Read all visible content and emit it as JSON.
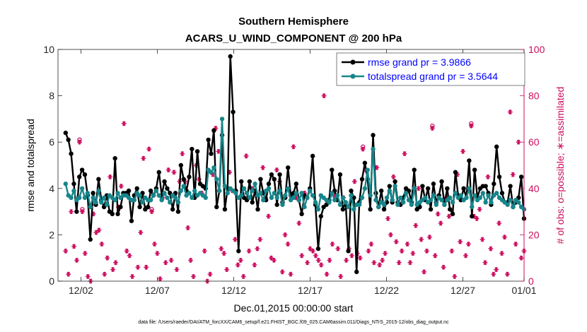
{
  "chart_data": {
    "type": "line",
    "title": "Southern Hemisphere",
    "subtitle": "ACARS_U_WIND_COMPONENT @ 200 hPa",
    "xlabel": "Dec.01,2015 00:00:00 start",
    "ylabel": "rmse and totalspread",
    "ylabel_right": "# of obs: o=possible; ∗=assimilated",
    "footnote": "data file: /Users/raeder/DAI/ATM_forcXX/CAM6_setup/f.e21.FHIST_BGC.f09_025.CAM6assim.011/Diags_NTrS_2015-12/obs_diag_output.nc",
    "xlim": [
      0.5,
      31.0
    ],
    "ylim": [
      0,
      10
    ],
    "ylim_right": [
      0,
      100
    ],
    "x_ticks": [
      {
        "value": 2,
        "label": "12/02"
      },
      {
        "value": 7,
        "label": "12/07"
      },
      {
        "value": 12,
        "label": "12/12"
      },
      {
        "value": 17,
        "label": "12/17"
      },
      {
        "value": 22,
        "label": "12/22"
      },
      {
        "value": 27,
        "label": "12/27"
      },
      {
        "value": 32,
        "label": "01/01"
      }
    ],
    "y_ticks": [
      "0",
      "2",
      "4",
      "6",
      "8",
      "10"
    ],
    "y_ticks_right": [
      "0",
      "20",
      "40",
      "60",
      "80",
      "100"
    ],
    "x_tick_labels": [
      "12/02",
      "12/07",
      "12/12",
      "12/17",
      "12/22",
      "12/27",
      "01/01"
    ],
    "legend_position": "top-right",
    "series": [
      {
        "name": "rmse grand pr = 3.9866",
        "color": "#000000",
        "marker": "dot",
        "axis": "left",
        "values": [
          6.4,
          6.1,
          5.5,
          4.2,
          3.0,
          4.5,
          4.8,
          4.6,
          3.7,
          1.8,
          3.8,
          3.3,
          4.4,
          3.5,
          3.2,
          3.7,
          3.0,
          2.9,
          5.3,
          2.9,
          3.2,
          3.8,
          3.8,
          3.9,
          2.6,
          3.7,
          4.0,
          3.2,
          3.8,
          3.1,
          3.2,
          3.9,
          3.7,
          4.0,
          4.7,
          3.7,
          4.3,
          4.0,
          3.8,
          3.1,
          3.8,
          3.0,
          5.0,
          4.4,
          3.9,
          4.5,
          5.7,
          3.6,
          5.6,
          4.2,
          4.1,
          4.0,
          6.1,
          5.5,
          6.5,
          3.2,
          3.9,
          6.3,
          3.1,
          4.0,
          9.7,
          7.3,
          3.9,
          1.3,
          4.3,
          3.6,
          3.5,
          4.3,
          3.4,
          3.9,
          3.1,
          4.4,
          3.8,
          3.5,
          4.2,
          4.6,
          4.4,
          3.3,
          4.6,
          3.4,
          3.6,
          4.9,
          3.7,
          3.8,
          4.2,
          3.5,
          2.9,
          3.7,
          3.6,
          4.0,
          5.4,
          3.3,
          1.4,
          2.8,
          3.2,
          3.3,
          3.5,
          4.8,
          3.9,
          3.5,
          4.6,
          3.1,
          3.4,
          1.3,
          3.9,
          3.6,
          0.4,
          3.4,
          4.4,
          5.1,
          4.4,
          3.1,
          6.3,
          3.8,
          3.2,
          3.9,
          3.1,
          3.4,
          4.1,
          3.4,
          4.3,
          3.4,
          3.3,
          3.6,
          4.0,
          3.9,
          3.4,
          4.8,
          3.1,
          3.2,
          4.1,
          3.5,
          4.0,
          3.1,
          4.2,
          3.4,
          3.7,
          4.3,
          3.3,
          4.0,
          3.1,
          2.9,
          4.7,
          3.7,
          3.5,
          4.0,
          3.6,
          5.2,
          2.8,
          4.8,
          3.6,
          4.0,
          4.1,
          4.1,
          3.8,
          3.3,
          4.2,
          5.8,
          4.5,
          3.8,
          3.4,
          3.4,
          4.1,
          3.2,
          3.4,
          3.6,
          4.5,
          2.7
        ]
      },
      {
        "name": "totalspread grand pr = 3.5644",
        "color": "#17858a",
        "marker": "dot",
        "axis": "left",
        "values": [
          4.2,
          3.7,
          3.6,
          3.9,
          3.5,
          3.6,
          4.0,
          3.6,
          3.8,
          3.2,
          3.6,
          3.4,
          3.9,
          3.4,
          3.6,
          3.3,
          3.7,
          3.6,
          3.5,
          3.8,
          3.6,
          3.7,
          3.7,
          3.6,
          3.5,
          3.5,
          3.8,
          3.7,
          3.4,
          3.6,
          3.5,
          3.5,
          3.7,
          3.9,
          3.7,
          3.5,
          3.8,
          3.6,
          3.4,
          3.7,
          3.6,
          3.4,
          3.9,
          4.1,
          3.7,
          3.8,
          3.6,
          3.9,
          3.7,
          3.8,
          3.7,
          3.6,
          4.8,
          4.7,
          4.9,
          4.4,
          3.9,
          7.0,
          4.1,
          3.8,
          4.0,
          3.9,
          3.8,
          3.6,
          3.7,
          4.0,
          3.8,
          3.6,
          3.9,
          4.2,
          3.7,
          3.8,
          3.5,
          3.9,
          4.0,
          3.6,
          3.8,
          3.6,
          3.9,
          3.3,
          3.7,
          4.0,
          3.5,
          3.6,
          3.8,
          3.5,
          3.8,
          3.2,
          3.6,
          3.9,
          3.7,
          3.4,
          3.1,
          3.7,
          3.6,
          3.5,
          3.4,
          3.8,
          3.5,
          3.7,
          3.3,
          3.6,
          3.4,
          3.2,
          3.7,
          3.1,
          3.3,
          3.3,
          3.6,
          4.0,
          4.8,
          3.7,
          5.7,
          3.5,
          3.2,
          3.4,
          3.3,
          3.6,
          3.9,
          3.5,
          4.1,
          3.3,
          3.6,
          3.4,
          3.8,
          3.5,
          3.3,
          4.0,
          3.3,
          3.4,
          3.5,
          3.6,
          3.4,
          3.5,
          3.7,
          3.3,
          3.6,
          3.5,
          3.3,
          3.5,
          3.6,
          3.4,
          3.8,
          3.6,
          3.7,
          3.5,
          3.6,
          4.0,
          3.2,
          3.7,
          3.5,
          3.6,
          3.8,
          3.4,
          3.7,
          3.4,
          3.7,
          3.8,
          3.6,
          3.5,
          3.4,
          3.3,
          3.5,
          3.2,
          3.5,
          3.4,
          3.2,
          3.1
        ]
      },
      {
        "name": "possible",
        "color": "#cc0d5e",
        "marker": "circle",
        "axis": "right",
        "values": [
          13,
          3,
          30,
          15,
          9,
          61,
          31,
          12,
          2,
          0,
          29,
          21,
          22,
          16,
          3,
          10,
          45,
          5,
          8,
          32,
          41,
          68,
          13,
          11,
          2,
          37,
          6,
          21,
          53,
          6,
          57,
          31,
          16,
          12,
          1,
          36,
          8,
          48,
          9,
          47,
          5,
          43,
          55,
          43,
          23,
          9,
          2,
          50,
          44,
          38,
          13,
          0,
          3,
          46,
          66,
          56,
          14,
          12,
          5,
          47,
          39,
          18,
          7,
          9,
          2,
          54,
          13,
          40,
          7,
          14,
          18,
          49,
          36,
          28,
          10,
          9,
          48,
          43,
          4,
          20,
          16,
          3,
          58,
          36,
          25,
          11,
          38,
          8,
          14,
          13,
          11,
          9,
          7,
          80,
          3,
          9,
          16,
          37,
          14,
          2,
          36,
          9,
          14,
          11,
          43,
          12,
          10,
          58,
          48,
          13,
          16,
          8,
          49,
          7,
          9,
          12,
          27,
          20,
          45,
          17,
          8,
          13,
          55,
          16,
          8,
          12,
          24,
          40,
          18,
          4,
          13,
          19,
          67,
          11,
          29,
          25,
          6,
          36,
          28,
          13,
          2,
          46,
          17,
          56,
          11,
          16,
          68,
          28,
          27,
          31,
          18,
          8,
          45,
          14,
          3,
          5,
          25,
          12,
          19,
          3,
          73,
          46,
          16,
          60,
          10,
          13
        ]
      },
      {
        "name": "assimilated",
        "color": "#cc0d5e",
        "marker": "star",
        "axis": "right",
        "values": [
          13,
          3,
          30,
          15,
          9,
          60,
          30,
          12,
          2,
          0,
          29,
          21,
          22,
          16,
          3,
          10,
          45,
          5,
          8,
          32,
          41,
          68,
          13,
          11,
          2,
          37,
          6,
          21,
          53,
          6,
          57,
          30,
          16,
          12,
          1,
          36,
          8,
          48,
          9,
          47,
          5,
          43,
          55,
          43,
          23,
          9,
          2,
          50,
          44,
          38,
          13,
          0,
          3,
          46,
          66,
          56,
          14,
          12,
          5,
          47,
          39,
          18,
          7,
          9,
          2,
          54,
          13,
          40,
          7,
          14,
          18,
          49,
          36,
          28,
          10,
          9,
          48,
          43,
          4,
          20,
          16,
          3,
          58,
          36,
          25,
          11,
          38,
          8,
          14,
          13,
          11,
          9,
          7,
          80,
          3,
          9,
          16,
          37,
          14,
          2,
          36,
          9,
          14,
          11,
          43,
          12,
          10,
          57,
          48,
          13,
          16,
          8,
          49,
          7,
          9,
          12,
          27,
          20,
          45,
          17,
          8,
          13,
          55,
          16,
          8,
          12,
          24,
          40,
          18,
          4,
          13,
          19,
          66,
          11,
          29,
          25,
          6,
          36,
          28,
          13,
          2,
          46,
          17,
          56,
          11,
          16,
          67,
          28,
          27,
          31,
          18,
          8,
          45,
          14,
          3,
          5,
          25,
          12,
          19,
          3,
          73,
          46,
          16,
          60,
          10,
          13
        ]
      }
    ]
  }
}
